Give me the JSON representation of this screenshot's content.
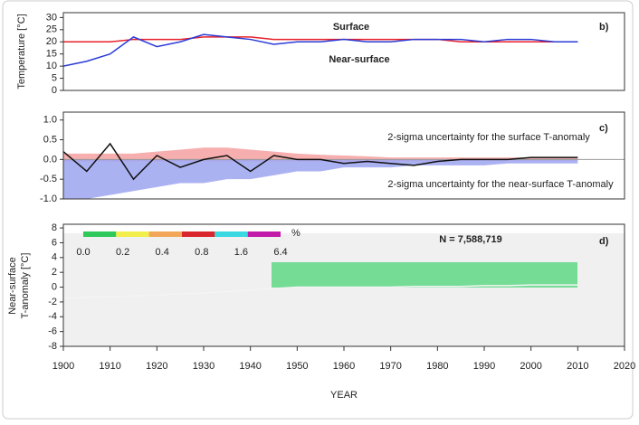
{
  "chart_data": [
    {
      "type": "line",
      "panel_label": "b)",
      "ylabel": [
        "Temperature [°C]"
      ],
      "xlim": [
        1900,
        2020
      ],
      "ylim": [
        0,
        32
      ],
      "yticks": [
        0,
        5,
        10,
        15,
        20,
        25,
        30
      ],
      "x": [
        1900,
        1905,
        1910,
        1915,
        1920,
        1925,
        1930,
        1935,
        1940,
        1945,
        1950,
        1955,
        1960,
        1965,
        1970,
        1975,
        1980,
        1985,
        1990,
        1995,
        2000,
        2005,
        2010
      ],
      "series": [
        {
          "name": "Surface",
          "color": "#e8202a",
          "values": [
            20,
            20,
            20,
            21,
            21,
            21,
            22,
            22,
            22,
            21,
            21,
            21,
            21,
            21,
            21,
            21,
            21,
            20,
            20,
            20,
            20,
            20,
            20
          ]
        },
        {
          "name": "Near-surface",
          "color": "#2b3bd6",
          "values": [
            10,
            12,
            15,
            22,
            18,
            20,
            23,
            22,
            21,
            19,
            20,
            20,
            21,
            20,
            20,
            21,
            21,
            21,
            20,
            21,
            21,
            20,
            20
          ]
        }
      ]
    },
    {
      "type": "band",
      "panel_label": "c)",
      "xlim": [
        1900,
        2020
      ],
      "ylim": [
        -1,
        1.2
      ],
      "yticks": [
        {
          "value": -1,
          "label": "-1.0"
        },
        {
          "value": -0.5,
          "label": "-0.5"
        },
        {
          "value": 0,
          "label": "0.0"
        },
        {
          "value": 0.5,
          "label": "0.5"
        },
        {
          "value": 1,
          "label": "1.0"
        }
      ],
      "x": [
        1900,
        1905,
        1910,
        1915,
        1920,
        1925,
        1930,
        1935,
        1940,
        1945,
        1950,
        1955,
        1960,
        1965,
        1970,
        1975,
        1980,
        1985,
        1990,
        1995,
        2000,
        2005,
        2010
      ],
      "values": [
        0.2,
        -0.3,
        0.4,
        -0.5,
        0.1,
        -0.2,
        0.0,
        0.1,
        -0.3,
        0.1,
        0.0,
        0.0,
        -0.1,
        -0.05,
        -0.1,
        -0.15,
        -0.05,
        0.0,
        0.0,
        0.0,
        0.05,
        0.05,
        0.05
      ],
      "color": "#111111",
      "series": [
        {
          "name": "2-sigma uncertainty for the surface T-anomaly",
          "color": "#f4a0a0",
          "upper": [
            0.15,
            0.15,
            0.15,
            0.15,
            0.2,
            0.25,
            0.3,
            0.3,
            0.25,
            0.2,
            0.15,
            0.12,
            0.1,
            0.08,
            0.05,
            0.05,
            0.05,
            0.05,
            0.05,
            0.05,
            0.05,
            0.05,
            0.05
          ],
          "lower": [
            -0.05,
            -0.05,
            -0.05,
            -0.05,
            -0.05,
            -0.05,
            -0.05,
            -0.05,
            -0.05,
            -0.05,
            -0.05,
            -0.05,
            -0.05,
            -0.05,
            -0.05,
            -0.05,
            -0.05,
            -0.03,
            -0.03,
            -0.03,
            -0.03,
            -0.03,
            -0.03
          ]
        },
        {
          "name": "2-sigma uncertainty for the near-surface T-anomaly",
          "color": "#9ca4f0",
          "upper": [
            0,
            0,
            0,
            0,
            0,
            0,
            0,
            0,
            0,
            0,
            0,
            0,
            0,
            0,
            0,
            0,
            0,
            0,
            0,
            0,
            0,
            0,
            0
          ],
          "lower": [
            -1.0,
            -1.0,
            -0.9,
            -0.8,
            -0.7,
            -0.6,
            -0.6,
            -0.5,
            -0.5,
            -0.4,
            -0.3,
            -0.3,
            -0.2,
            -0.2,
            -0.2,
            -0.15,
            -0.15,
            -0.15,
            -0.15,
            -0.1,
            -0.1,
            -0.1,
            -0.1
          ]
        }
      ]
    },
    {
      "type": "line",
      "panel_label": "d)",
      "ylabel": [
        "Near-surface",
        "T-anomaly [°C]"
      ],
      "annotation": "N = 7,588,719",
      "xlabel": "YEAR",
      "xlim": [
        1900,
        2020
      ],
      "xticks": [
        1900,
        1910,
        1920,
        1930,
        1940,
        1950,
        1960,
        1970,
        1980,
        1990,
        2000,
        2010,
        2020
      ],
      "ylim": [
        -8,
        8.5
      ],
      "yticks": [
        -8,
        -6,
        -4,
        -2,
        0,
        2,
        4,
        6,
        8
      ],
      "x": [
        1900,
        1905,
        1910,
        1915,
        1920,
        1925,
        1930,
        1935,
        1940,
        1945,
        1950,
        1955,
        1960,
        1965,
        1970,
        1975,
        1980,
        1985,
        1990,
        1995,
        2000,
        2005,
        2010
      ],
      "series": [
        {
          "color": "#f4f4f4",
          "values": [
            -1.5,
            -1.4,
            -1.3,
            -1.2,
            -1.1,
            -0.9,
            -0.8,
            -0.6,
            -0.4,
            -0.2,
            0,
            0,
            0,
            0,
            0,
            0.1,
            0.1,
            0.1,
            0.2,
            0.2,
            0.3,
            0.3,
            0.3
          ]
        }
      ],
      "colorbar": {
        "labels": [
          "0.0",
          "0.2",
          "0.4",
          "0.8",
          "1.6",
          "6.4"
        ],
        "unit": "%",
        "colors": [
          "#2ec95a",
          "#f2ee4c",
          "#f2a65a",
          "#d8262c",
          "#3ad8e0",
          "#c21aa8"
        ]
      }
    }
  ]
}
